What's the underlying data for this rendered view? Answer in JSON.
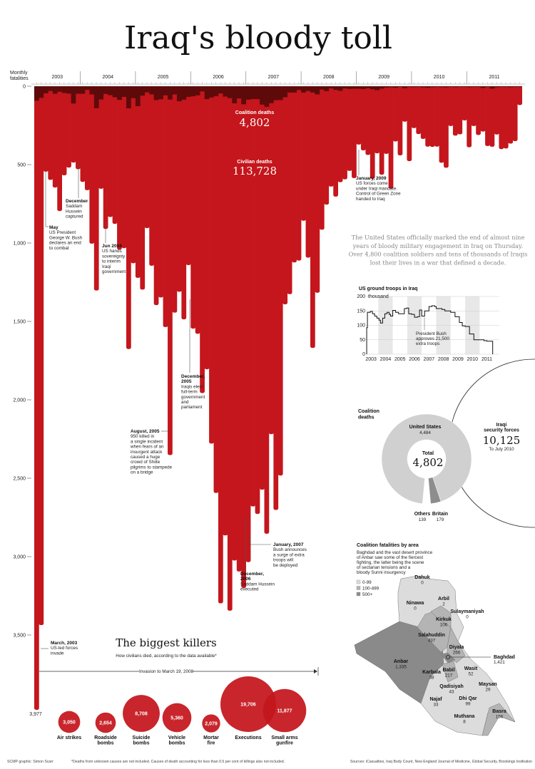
{
  "title": "Iraq's bloody toll",
  "chart_data": [
    {
      "type": "bar",
      "ylabel": "Monthly fatalities",
      "ylim": [
        0,
        4000
      ],
      "y_ticks": [
        "0",
        "500",
        "1,000",
        "1,500",
        "2,000",
        "2,500",
        "3,000",
        "3,500"
      ],
      "y_direction": "downward",
      "years": [
        "2003",
        "2004",
        "2005",
        "2006",
        "2007",
        "2008",
        "2009",
        "2010",
        "2011"
      ],
      "start_month": "2003-03",
      "colors": {
        "civilian": "#c4161c",
        "coalition": "#5e0a0a"
      },
      "series": [
        {
          "name": "Civilian deaths",
          "total": "113,728",
          "values": [
            3977,
            3437,
            545,
            597,
            646,
            796,
            568,
            519,
            487,
            529,
            610,
            663,
            1004,
            1303,
            654,
            910,
            834,
            878,
            1042,
            1033,
            1676,
            1129,
            1222,
            1297,
            905,
            1145,
            1396,
            1347,
            1536,
            2352,
            1444,
            1311,
            1487,
            1141,
            1546,
            1579,
            1957,
            1805,
            2279,
            2594,
            3298,
            2865,
            3345,
            3025,
            3095,
            3200,
            3035,
            2680,
            2728,
            2573,
            2854,
            2219,
            2702,
            2483,
            1391,
            1326,
            1124,
            1112,
            858,
            1093,
            1669,
            1317,
            915,
            755,
            640,
            704,
            612,
            594,
            540,
            586,
            372,
            409,
            438,
            590,
            428,
            564,
            431,
            653,
            352,
            441,
            226,
            478,
            267,
            305,
            336,
            385,
            387,
            385,
            488,
            520,
            254,
            315,
            307,
            218,
            389,
            254,
            311,
            289,
            381,
            386,
            308,
            401,
            397,
            366,
            350,
            120
          ]
        },
        {
          "name": "Coalition deaths",
          "total": "4,802",
          "values": [
            92,
            74,
            45,
            30,
            48,
            35,
            43,
            47,
            110,
            48,
            48,
            23,
            52,
            140,
            84,
            49,
            57,
            70,
            87,
            68,
            141,
            76,
            127,
            60,
            39,
            52,
            88,
            83,
            58,
            85,
            52,
            96,
            86,
            68,
            64,
            58,
            33,
            82,
            72,
            63,
            46,
            66,
            76,
            109,
            78,
            115,
            86,
            82,
            82,
            117,
            131,
            108,
            89,
            88,
            70,
            40,
            40,
            24,
            40,
            30,
            40,
            52,
            21,
            31,
            14,
            23,
            29,
            14,
            17,
            16,
            16,
            18,
            12,
            19,
            25,
            15,
            8,
            7,
            10,
            4,
            12,
            5,
            6,
            5,
            7,
            9,
            6,
            4,
            6,
            7,
            3,
            6,
            2,
            4,
            6,
            1,
            2,
            11,
            2,
            15,
            6,
            4,
            4,
            6,
            2,
            2
          ]
        }
      ],
      "min_label": "3,977"
    },
    {
      "type": "line",
      "title": "US ground troops in Iraq",
      "unit": "thousand",
      "ylim": [
        0,
        200
      ],
      "y_ticks": [
        "200",
        "150",
        "100",
        "50",
        "0"
      ],
      "x_ticks": [
        "2003",
        "2004",
        "2005",
        "2006",
        "2007",
        "2008",
        "2009",
        "2010",
        "2011"
      ],
      "shaded_years": [
        "2004",
        "2006",
        "2008",
        "2010"
      ],
      "points": [
        [
          2003.2,
          92
        ],
        [
          2003.25,
          145
        ],
        [
          2003.45,
          148
        ],
        [
          2003.6,
          140
        ],
        [
          2003.75,
          132
        ],
        [
          2003.9,
          125
        ],
        [
          2004.05,
          118
        ],
        [
          2004.15,
          108
        ],
        [
          2004.3,
          125
        ],
        [
          2004.45,
          140
        ],
        [
          2004.6,
          145
        ],
        [
          2004.75,
          138
        ],
        [
          2004.85,
          132
        ],
        [
          2005.0,
          152
        ],
        [
          2005.2,
          145
        ],
        [
          2005.4,
          140
        ],
        [
          2005.6,
          140
        ],
        [
          2005.8,
          158
        ],
        [
          2005.95,
          160
        ],
        [
          2006.1,
          140
        ],
        [
          2006.3,
          138
        ],
        [
          2006.5,
          128
        ],
        [
          2006.7,
          130
        ],
        [
          2006.85,
          153
        ],
        [
          2007.0,
          132
        ],
        [
          2007.2,
          150
        ],
        [
          2007.5,
          165
        ],
        [
          2007.7,
          168
        ],
        [
          2007.9,
          165
        ],
        [
          2008.0,
          158
        ],
        [
          2008.4,
          155
        ],
        [
          2008.6,
          150
        ],
        [
          2009.0,
          145
        ],
        [
          2009.3,
          130
        ],
        [
          2009.6,
          110
        ],
        [
          2009.8,
          98
        ],
        [
          2010.0,
          96
        ],
        [
          2010.3,
          70
        ],
        [
          2010.6,
          50
        ],
        [
          2011.0,
          50
        ],
        [
          2011.3,
          47
        ],
        [
          2011.5,
          45
        ],
        [
          2011.9,
          0
        ]
      ],
      "annotation": [
        "President Bush",
        "approves 21,500",
        "extra troops"
      ]
    },
    {
      "type": "pie",
      "title": [
        "Coalition",
        "deaths"
      ],
      "slices": [
        {
          "name": "United States",
          "value": 4484,
          "label": "4,484",
          "color": "#d0d0d0"
        },
        {
          "name": "Britain",
          "value": 179,
          "label": "179",
          "color": "#8d8d8d"
        },
        {
          "name": "Others",
          "value": 139,
          "label": "139",
          "color": "#ffffff"
        }
      ],
      "center_label": "Total",
      "center_value": "4,802",
      "side": {
        "lines": [
          "Iraqi",
          "security forces"
        ],
        "value": "10,125",
        "note": "To July 2010"
      }
    },
    {
      "type": "bubble",
      "title": "The biggest killers",
      "subtitle": "How civilians died, according to the data available*",
      "range_label": "Invasion to March 19, 2008",
      "color": "#c4161c",
      "items": [
        {
          "lines": [
            "Air strikes"
          ],
          "value": 3050,
          "label": "3,050"
        },
        {
          "lines": [
            "Roadside",
            "bombs"
          ],
          "value": 2654,
          "label": "2,654"
        },
        {
          "lines": [
            "Suicide",
            "bombs"
          ],
          "value": 8708,
          "label": "8,708"
        },
        {
          "lines": [
            "Vehicle",
            "bombs"
          ],
          "value": 5360,
          "label": "5,360"
        },
        {
          "lines": [
            "Mortar",
            "fire"
          ],
          "value": 2079,
          "label": "2,079"
        },
        {
          "lines": [
            "Executions"
          ],
          "value": 19706,
          "label": "19,706"
        },
        {
          "lines": [
            "Small arms",
            "gunfire"
          ],
          "value": 11877,
          "label": "11,877"
        }
      ]
    }
  ],
  "chart_labels": {
    "coalition_label": "Coalition deaths",
    "civilian_label": "Civilian deaths"
  },
  "annotations": [
    {
      "head": "May",
      "lines": [
        "US President",
        "George W. Bush",
        "declares an end",
        "to combat"
      ]
    },
    {
      "head": "December",
      "lines": [
        "Saddam",
        "Hussein",
        "captured"
      ]
    },
    {
      "head": "Jun 2004",
      "lines": [
        "US hands",
        "sovereignty",
        "to interim",
        "Iraqi",
        "government"
      ]
    },
    {
      "head": "December,",
      "head2": "2005",
      "lines": [
        "Iraqis elect",
        "full-term",
        "government",
        "and",
        "parliament"
      ]
    },
    {
      "head": "August, 2005",
      "lines": [
        "950 killed in",
        "a single incident",
        "when fears of an",
        "insurgent attack",
        "caused a huge",
        "crowd of Shiite",
        "pilgrims to stampede",
        "on a bridge"
      ]
    },
    {
      "head": "December,",
      "head2": "2006",
      "lines": [
        "Saddam Hussein",
        "executed"
      ]
    },
    {
      "head": "January, 2007",
      "lines": [
        "Bush announces",
        "a surge of extra",
        "troops will",
        "be deployed"
      ]
    },
    {
      "head": "January, 2009",
      "lines": [
        "US forces come",
        "under Iraqi mandate.",
        "Control of Green Zone",
        "handed to Iraq"
      ]
    },
    {
      "head": "March, 2003",
      "lines": [
        "US-led forces",
        "invade"
      ]
    }
  ],
  "intro": [
    "The United States officially marked the end of almost nine",
    "years of bloody military engagement in Iraq on Thursday.",
    "Over 4,800 coalition soldiers and tens of thousands of Iraqis",
    "lost their lives in a war that defined a decade."
  ],
  "map": {
    "title": "Coalition fatalities by area",
    "description": [
      "Baghdad and the vast desert province",
      "of Anbar saw some of the fiercest",
      "fighting, the latter being the scene",
      "of sectarian tensions and a",
      "bloody Sunni insurgency"
    ],
    "legend": [
      {
        "label": "0-99",
        "color": "#dcdcdc"
      },
      {
        "label": "100-499",
        "color": "#b4b4b4"
      },
      {
        "label": "500+",
        "color": "#8a8a8a"
      }
    ],
    "provinces": [
      {
        "name": "Dahuk",
        "value": "0"
      },
      {
        "name": "Ninawa",
        "value": "0"
      },
      {
        "name": "Arbil",
        "value": "2"
      },
      {
        "name": "Sulaymaniyah",
        "value": "0"
      },
      {
        "name": "Kirkuk",
        "value": "106"
      },
      {
        "name": "Salahuddin",
        "value": "437"
      },
      {
        "name": "Diyala",
        "value": "266"
      },
      {
        "name": "Baghdad",
        "value": "1,421"
      },
      {
        "name": "Anbar",
        "value": "1,335"
      },
      {
        "name": "Karbala",
        "value": "38"
      },
      {
        "name": "Babil",
        "value": "217"
      },
      {
        "name": "Wasit",
        "value": "52"
      },
      {
        "name": "Qadisiyah",
        "value": "43"
      },
      {
        "name": "Maysan",
        "value": "29"
      },
      {
        "name": "Najaf",
        "value": "33"
      },
      {
        "name": "Dhi Qar",
        "value": "99"
      },
      {
        "name": "Basra",
        "value": "156"
      },
      {
        "name": "Muthana",
        "value": "8"
      }
    ]
  },
  "footer": {
    "credit": "SCMP graphic: Simon Scarr",
    "footnote": "*Deaths from unknown causes are not included. Causes of death accounting for less than 0.5 per cent of killings also not included.",
    "sources": "Sources: iCasualties, Iraq Body Count, New England Journal of Medicine, Global Security, Brookings Institution"
  }
}
